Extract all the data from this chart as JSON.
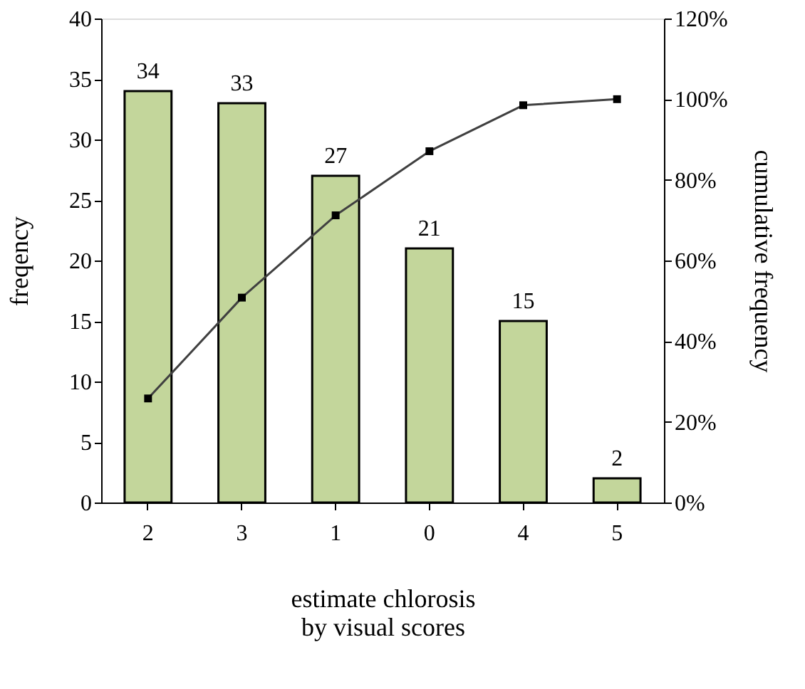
{
  "chart_data": {
    "type": "bar",
    "categories": [
      "2",
      "3",
      "1",
      "0",
      "4",
      "5"
    ],
    "xlabel": "estimate chlorosis\nby visual scores",
    "ylabel": "freqency",
    "y2label": "cumulative frequency",
    "series": [
      {
        "color": "#c3d69b",
        "values": [
          34,
          33,
          27,
          21,
          15,
          2
        ],
        "value_labels": [
          "34",
          "33",
          "27",
          "21",
          "15",
          "2"
        ]
      },
      {
        "type": "line",
        "axis": "y2",
        "color": "#404040",
        "marker": "square",
        "values": [
          25.8,
          50.8,
          71.2,
          87.1,
          98.5,
          100
        ]
      }
    ],
    "ylim": [
      0,
      40
    ],
    "yticks": [
      0,
      5,
      10,
      15,
      20,
      25,
      30,
      35,
      40
    ],
    "y2lim": [
      0,
      120
    ],
    "y2ticks": [
      {
        "value": 0,
        "label": "0%"
      },
      {
        "value": 20,
        "label": "20%"
      },
      {
        "value": 40,
        "label": "40%"
      },
      {
        "value": 60,
        "label": "60%"
      },
      {
        "value": 80,
        "label": "80%"
      },
      {
        "value": 100,
        "label": "100%"
      },
      {
        "value": 120,
        "label": "120%"
      }
    ],
    "grid": false
  }
}
